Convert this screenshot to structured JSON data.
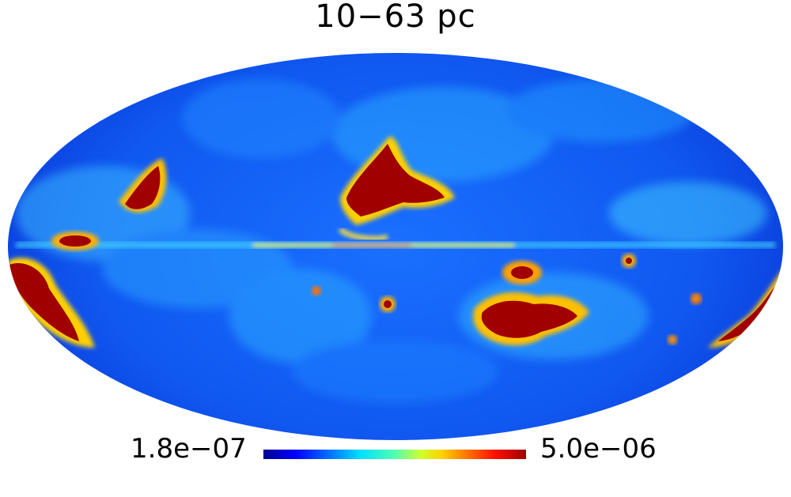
{
  "title": "10−63 pc",
  "colorbar": {
    "min_label": "1.8e−07",
    "max_label": "5.0e−06",
    "colormap": [
      "#00008f",
      "#0000ff",
      "#0070ff",
      "#00e0ff",
      "#50ffb0",
      "#d0ff30",
      "#ffd000",
      "#ff7000",
      "#ff1000",
      "#a00000"
    ]
  },
  "map": {
    "projection": "Mollweide",
    "background_color": "#1060f0"
  }
}
